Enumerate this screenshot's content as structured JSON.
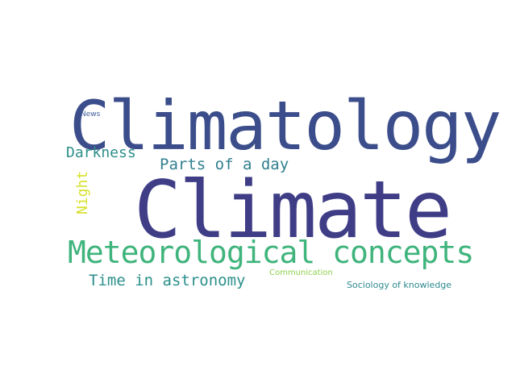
{
  "words": {
    "climatology": {
      "text": "Climatology",
      "color": "#3b4d8a"
    },
    "climate": {
      "text": "Climate",
      "color": "#3f3d86"
    },
    "meteo": {
      "text": "Meteorological concepts",
      "color": "#3fb47c"
    },
    "darkness": {
      "text": "Darkness",
      "color": "#2d8f8a"
    },
    "parts": {
      "text": "Parts of a day",
      "color": "#2f7f8e"
    },
    "time": {
      "text": "Time in astronomy",
      "color": "#2a8f8b"
    },
    "night": {
      "text": "Night",
      "color": "#d6e12a"
    },
    "news": {
      "text": "News",
      "color": "#3f5c9a"
    },
    "communication": {
      "text": "Communication",
      "color": "#8fd14f"
    },
    "sociology": {
      "text": "Sociology of knowledge",
      "color": "#2f8a8f"
    }
  }
}
